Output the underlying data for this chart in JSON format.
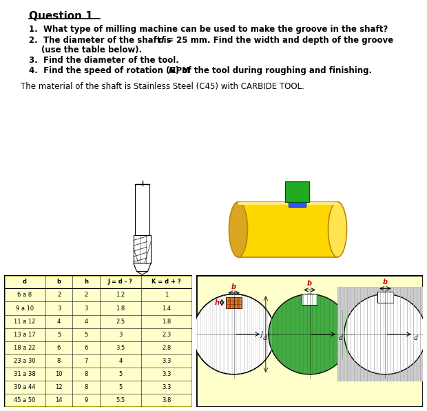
{
  "title": "Question 1",
  "bg_color": "#ffffff",
  "table_bg": "#ffffcc",
  "diagram_bg": "#ffffcc",
  "table_header": [
    "d",
    "b",
    "h",
    "J = d - ?",
    "K = d + ?"
  ],
  "table_rows": [
    [
      "6 a 8",
      "2",
      "2",
      "1.2",
      "1"
    ],
    [
      "9 a 10",
      "3",
      "3",
      "1.8",
      "1.4"
    ],
    [
      "11 a 12",
      "4",
      "4",
      "2.5",
      "1.8"
    ],
    [
      "13 a 17",
      "5",
      "5",
      "3",
      "2.3"
    ],
    [
      "18 a 22",
      "6",
      "6",
      "3.5",
      "2.8"
    ],
    [
      "23 a 30",
      "8",
      "7",
      "4",
      "3.3"
    ],
    [
      "31 a 38",
      "10",
      "8",
      "5",
      "3.3"
    ],
    [
      "39 a 44",
      "12",
      "8",
      "5",
      "3.3"
    ],
    [
      "45 a 50",
      "14",
      "9",
      "5.5",
      "3.8"
    ]
  ]
}
